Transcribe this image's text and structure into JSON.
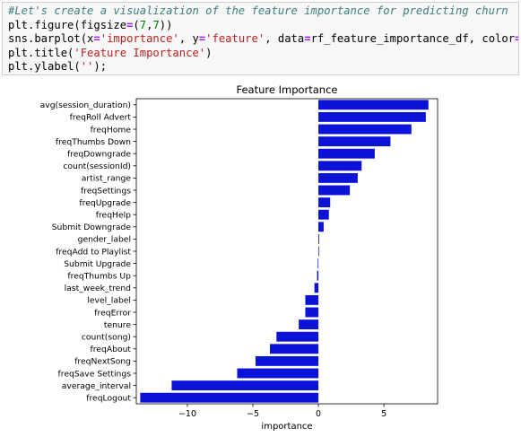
{
  "code_cell": {
    "lines": [
      "#Let's create a visualization of the feature importance for predicting churn",
      "plt.figure(figsize=(7,7))",
      "sns.barplot(x='importance', y='feature', data=rf_feature_importance_df, color=\"b\")",
      "plt.title('Feature Importance')",
      "plt.ylabel('');"
    ]
  },
  "chart_data": {
    "type": "bar",
    "orientation": "horizontal",
    "title": "Feature Importance",
    "xlabel": "importance",
    "ylabel": "",
    "xlim": [
      -13.9,
      9.1
    ],
    "xticks": [
      -10,
      -5,
      0,
      5
    ],
    "bar_color": "#0b13d6",
    "grid": false,
    "categories": [
      "avg(session_duration)",
      "freqRoll Advert",
      "freqHome",
      "freqThumbs Down",
      "freqDowngrade",
      "count(sessionId)",
      "artist_range",
      "freqSettings",
      "freqUpgrade",
      "freqHelp",
      "Submit Downgrade",
      "gender_label",
      "freqAdd to Playlist",
      "Submit Upgrade",
      "freqThumbs Up",
      "last_week_trend",
      "level_label",
      "freqError",
      "tenure",
      "count(song)",
      "freqAbout",
      "freqNextSong",
      "freqSave Settings",
      "average_interval",
      "freqLogout"
    ],
    "values": [
      8.4,
      8.2,
      7.1,
      5.5,
      4.3,
      3.3,
      3.0,
      2.4,
      0.9,
      0.8,
      0.4,
      0.06,
      0.05,
      -0.05,
      -0.1,
      -0.3,
      -1.0,
      -1.0,
      -1.5,
      -3.2,
      -3.7,
      -4.8,
      -6.2,
      -11.2,
      -13.6
    ]
  }
}
